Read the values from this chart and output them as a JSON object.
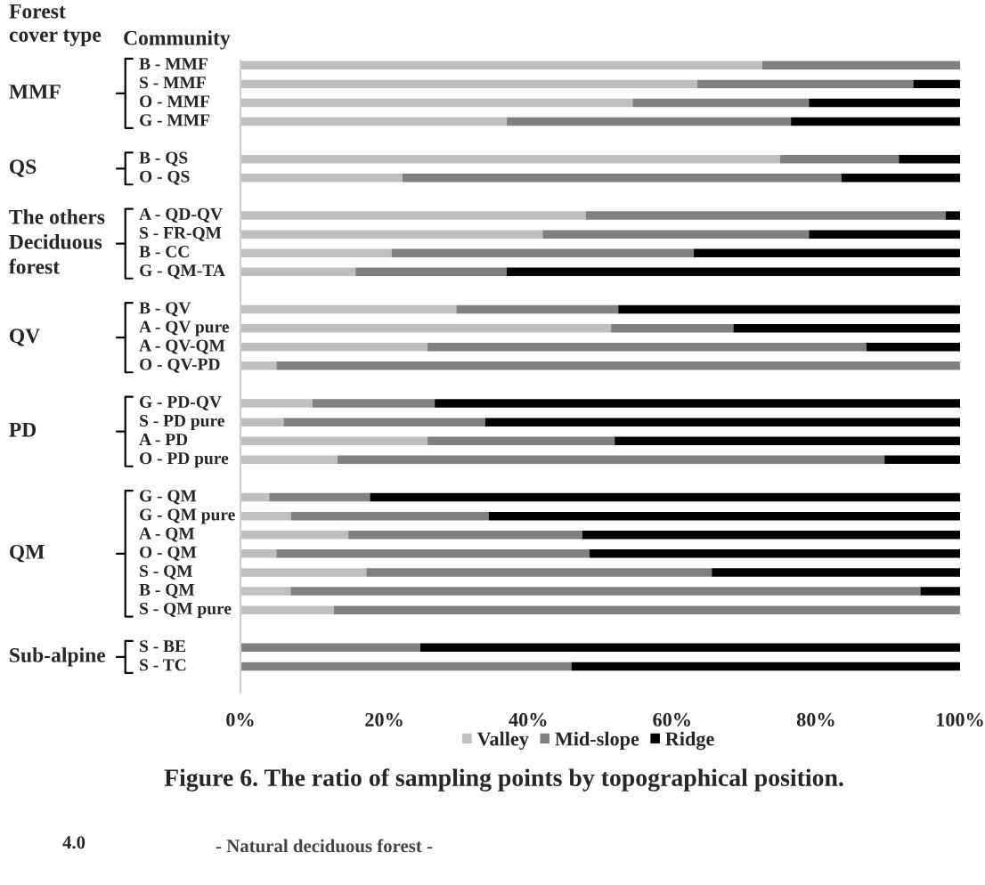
{
  "chart_data": {
    "type": "bar",
    "orientation": "horizontal",
    "stacked": true,
    "title": "Figure 6. The ratio of sampling points by topographical position.",
    "categories": [
      "B - MMF",
      "S - MMF",
      "O - MMF",
      "G - MMF",
      null,
      "B - QS",
      "O - QS",
      null,
      "A - QD-QV",
      "S - FR-QM",
      "B - CC",
      "G - QM-TA",
      null,
      "B - QV",
      "A - QV pure",
      "A - QV-QM",
      "O - QV-PD",
      null,
      "G - PD-QV",
      "S - PD pure",
      "A - PD",
      "O - PD pure",
      null,
      "G - QM",
      "G - QM pure",
      "A - QM",
      "O - QM",
      "S - QM",
      "B - QM",
      "S - QM pure",
      null,
      "S - BE",
      "S - TC"
    ],
    "series": [
      {
        "name": "Valley",
        "color": "#bfbfbf",
        "values": [
          72.5,
          63.5,
          54.5,
          37,
          null,
          75,
          22.5,
          null,
          48,
          42,
          21,
          16,
          null,
          30,
          51.5,
          26,
          5,
          null,
          10,
          6,
          26,
          13.5,
          null,
          4,
          7,
          15,
          5,
          17.5,
          7,
          13,
          null,
          0,
          0
        ]
      },
      {
        "name": "Mid-slope",
        "color": "#808080",
        "values": [
          27.5,
          30,
          24.5,
          39.5,
          null,
          16.5,
          61,
          null,
          50,
          37,
          42,
          21,
          null,
          22.5,
          17,
          61,
          95,
          null,
          17,
          28,
          26,
          76,
          null,
          14,
          27.5,
          32.5,
          43.5,
          48,
          87.5,
          87,
          null,
          25,
          46
        ]
      },
      {
        "name": "Ridge",
        "color": "#000000",
        "values": [
          0,
          6.5,
          21,
          23.5,
          null,
          8.5,
          16.5,
          null,
          2,
          21,
          37,
          63,
          null,
          47.5,
          31.5,
          13,
          0,
          null,
          73,
          66,
          48,
          10.5,
          null,
          82,
          65.5,
          52.5,
          51.5,
          34.5,
          5.5,
          0,
          null,
          75,
          54
        ]
      }
    ],
    "xlim": [
      0,
      100
    ],
    "xticks": [
      {
        "value": 0,
        "label": "0%"
      },
      {
        "value": 20,
        "label": "20%"
      },
      {
        "value": 40,
        "label": "40%"
      },
      {
        "value": 60,
        "label": "60%"
      },
      {
        "value": 80,
        "label": "80%"
      },
      {
        "value": 100,
        "label": "100%"
      }
    ],
    "legend": "bottom",
    "grid": false,
    "annotations": [
      "Forest\ncover type",
      "Community",
      "MMF",
      "QS",
      "The others\nDeciduous\nforest",
      "QV",
      "PD",
      "QM",
      "Sub-alpine",
      "4.0",
      "- Natural deciduous forest -"
    ]
  }
}
